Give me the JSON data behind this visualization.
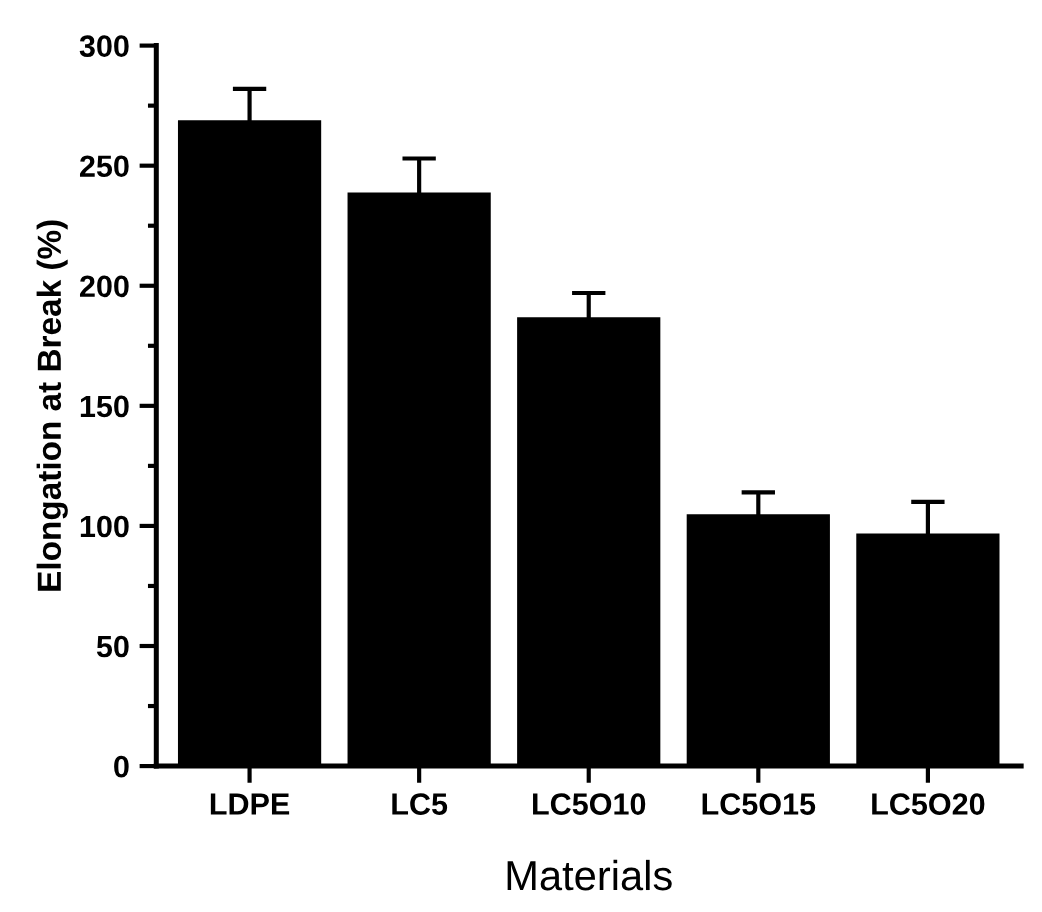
{
  "chart_data": {
    "type": "bar",
    "xlabel": "Materials",
    "ylabel": "Elongation at Break (%)",
    "categories": [
      "LDPE",
      "LC5",
      "LC5O10",
      "LC5O15",
      "LC5O20"
    ],
    "values": [
      268,
      238,
      186,
      104,
      96
    ],
    "errors": [
      14,
      15,
      11,
      10,
      14
    ],
    "color": "#000000",
    "ylim": [
      0,
      300
    ],
    "yticks": [
      0,
      {
        "value": 25,
        "label": null
      },
      50,
      {
        "value": 75,
        "label": null
      },
      100,
      {
        "value": 125,
        "label": null
      },
      150,
      {
        "value": 175,
        "label": null
      },
      200,
      {
        "value": 225,
        "label": null
      },
      250,
      {
        "value": 275,
        "label": null
      },
      300
    ],
    "grid": false
  }
}
